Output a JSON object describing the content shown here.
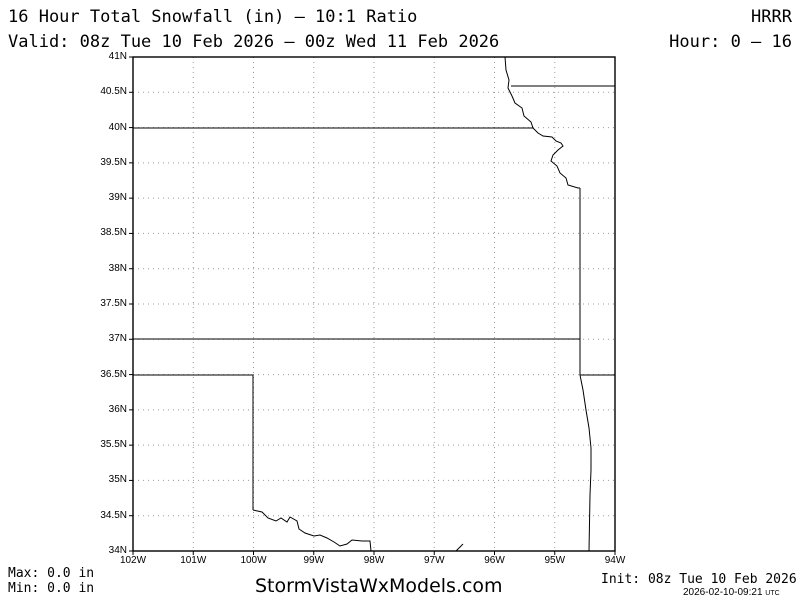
{
  "header": {
    "title": "16 Hour Total Snowfall (in) – 10:1 Ratio",
    "valid": "Valid: 08z Tue 10 Feb 2026 – 00z Wed 11 Feb 2026",
    "model": "HRRR",
    "hour": "Hour: 0 – 16"
  },
  "footer": {
    "max": "Max: 0.0 in",
    "min": "Min: 0.0 in",
    "site": "StormVistaWxModels.com",
    "init": "Init: 08z Tue 10 Feb 2026",
    "timestamp": "2026-02-10-09:21",
    "timestamp_unit": "UTC"
  },
  "map": {
    "lat_range": [
      34,
      41
    ],
    "lon_range": [
      -102,
      -94
    ],
    "lat_labels": [
      "41N",
      "40.5N",
      "40N",
      "39.5N",
      "39N",
      "38.5N",
      "38N",
      "37.5N",
      "37N",
      "36.5N",
      "36N",
      "35.5N",
      "35N",
      "34.5N",
      "34N"
    ],
    "lon_labels": [
      "102W",
      "101W",
      "100W",
      "99W",
      "98W",
      "97W",
      "96W",
      "95W",
      "94W"
    ],
    "boundary_color": "#000000",
    "grid_color": "#9a9a9a",
    "snowfall_max_in": 0.0,
    "snowfall_min_in": 0.0
  }
}
